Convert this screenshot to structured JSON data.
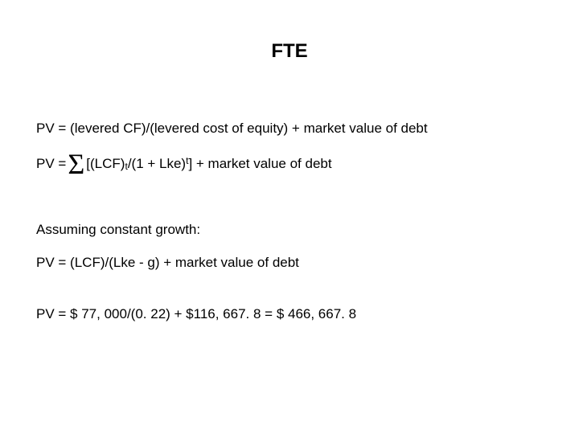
{
  "title": "FTE",
  "line1_prefix": "PV =  (levered CF)/(levered cost of equity) + market value of debt",
  "line2": {
    "prefix": "PV = ",
    "sigma": "Σ",
    "post_sigma": "[(LCF)",
    "sub1": "t",
    "mid1": "/(1 + Lke)",
    "sup1": "t",
    "suffix": "] + market value of debt"
  },
  "line3": "Assuming constant growth:",
  "line4": "PV = (LCF)/(Lke - g) + market value of debt",
  "line5": "PV = $ 77, 000/(0. 22) + $116, 667. 8 = $ 466, 667. 8"
}
